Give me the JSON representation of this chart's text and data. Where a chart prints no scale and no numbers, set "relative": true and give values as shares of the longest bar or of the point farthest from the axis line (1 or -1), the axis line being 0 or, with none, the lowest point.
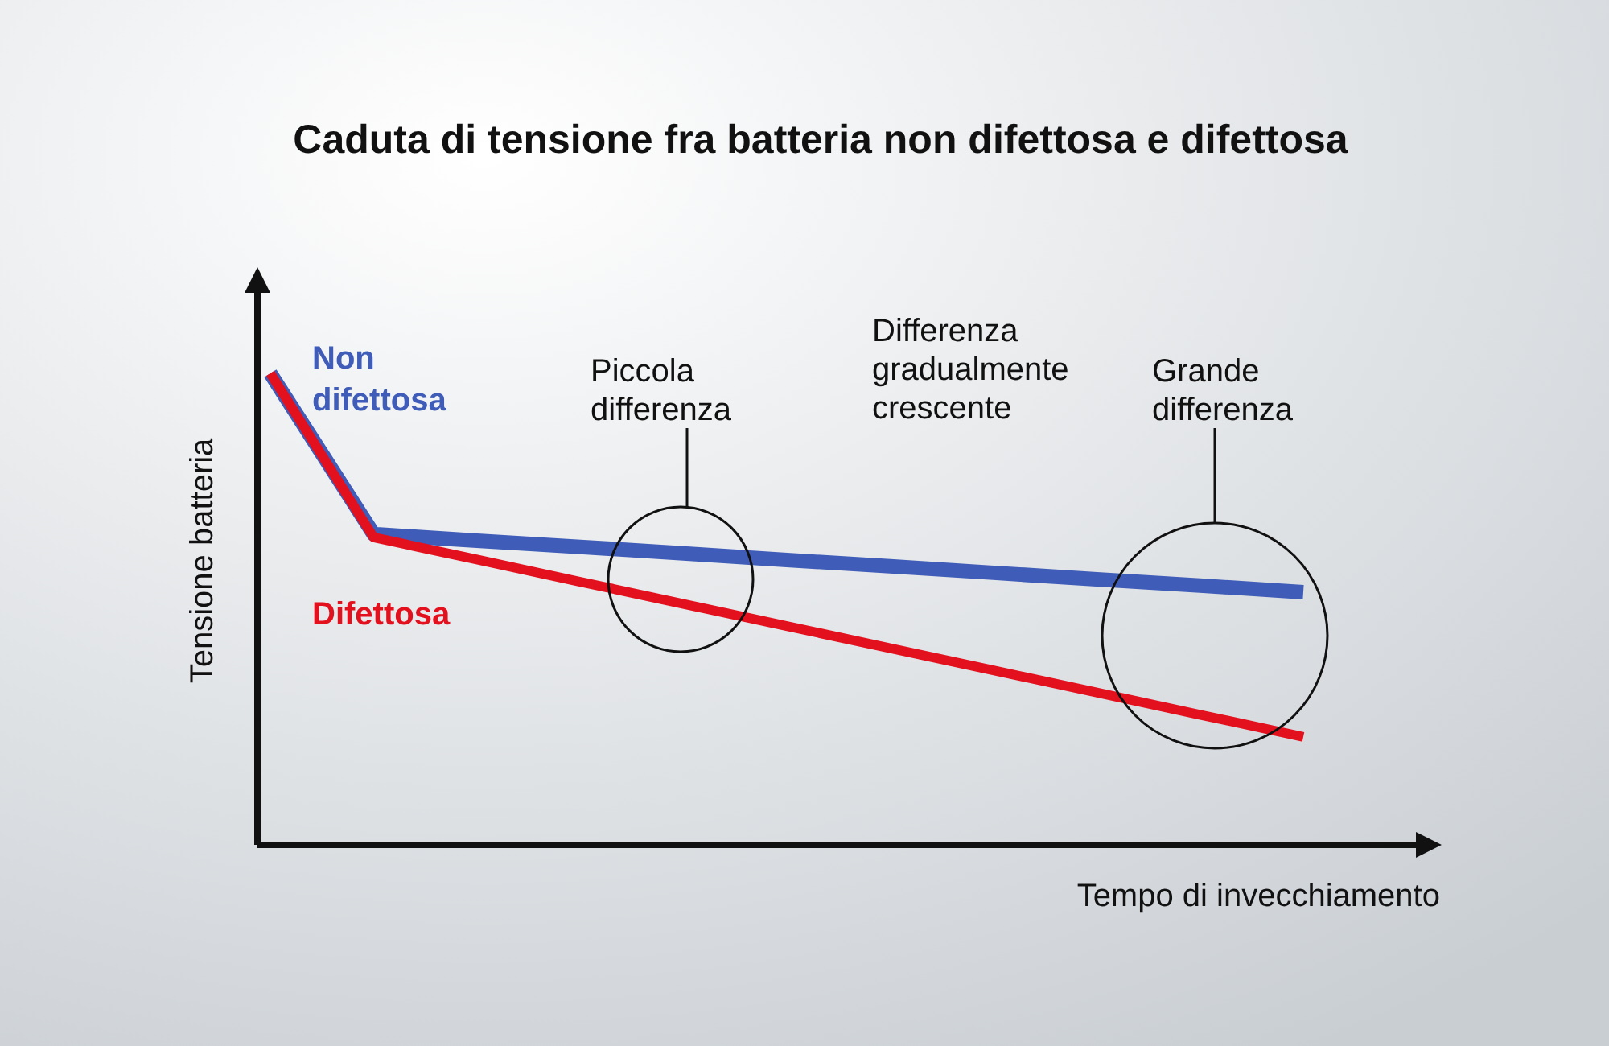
{
  "chart_data": {
    "type": "line",
    "title": "Caduta di tensione fra batteria non difettosa e difettosa",
    "xlabel": "Tempo di invecchiamento",
    "ylabel": "Tensione batteria",
    "relative": true,
    "categories": [
      null,
      null,
      null,
      null,
      null,
      null,
      null,
      null,
      null,
      null,
      null
    ],
    "marker": "none",
    "line_style": "solid",
    "series": [
      {
        "name": "Non difettosa",
        "color": "#3f5cb8",
        "values": [
          1,
          0.659,
          0.645,
          0.632,
          0.618,
          0.604,
          0.591,
          0.577,
          0.563,
          0.55,
          0.536
        ]
      },
      {
        "name": "Difettosa",
        "color": "#e3101e",
        "values": [
          1,
          0.652,
          0.605,
          0.558,
          0.511,
          0.464,
          0.417,
          0.37,
          0.323,
          0.276,
          0.229
        ]
      }
    ],
    "annotations": [
      "Piccola differenza",
      "Differenza gradualmente crescente",
      "Grande differenza"
    ]
  }
}
